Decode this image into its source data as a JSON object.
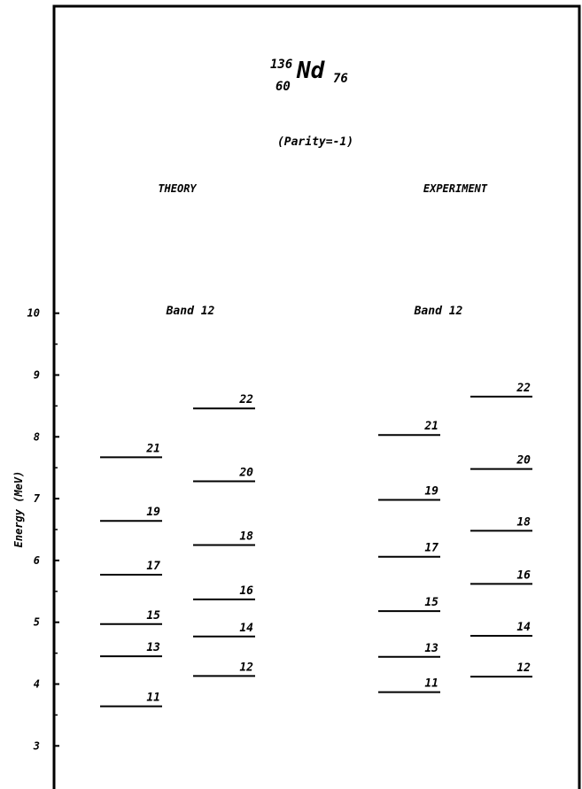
{
  "title": {
    "mass_number": "136",
    "element": "Nd",
    "proton_number": "60",
    "neutron_number": "76"
  },
  "parity_label": "(Parity=-1)",
  "axis": {
    "label": "Energy (MeV)",
    "ylim": [
      2.4,
      10.9
    ],
    "major_ticks": [
      3,
      4,
      5,
      6,
      7,
      8,
      9,
      10
    ],
    "minor_ticks": [
      3.5,
      4.5,
      5.5,
      6.5,
      7.5,
      8.5,
      9.5
    ]
  },
  "panels": [
    {
      "header": "THEORY",
      "band_label": "Band 12",
      "levels": [
        {
          "spin": "11",
          "energy": 3.64
        },
        {
          "spin": "13",
          "energy": 4.45
        },
        {
          "spin": "15",
          "energy": 4.97
        },
        {
          "spin": "17",
          "energy": 5.77
        },
        {
          "spin": "19",
          "energy": 6.64
        },
        {
          "spin": "21",
          "energy": 7.67
        },
        {
          "spin": "12",
          "energy": 4.13
        },
        {
          "spin": "14",
          "energy": 4.77
        },
        {
          "spin": "16",
          "energy": 5.37
        },
        {
          "spin": "18",
          "energy": 6.25
        },
        {
          "spin": "20",
          "energy": 7.28
        },
        {
          "spin": "22",
          "energy": 8.46
        }
      ]
    },
    {
      "header": "EXPERIMENT",
      "band_label": "Band 12",
      "levels": [
        {
          "spin": "11",
          "energy": 3.87
        },
        {
          "spin": "13",
          "energy": 4.44
        },
        {
          "spin": "15",
          "energy": 5.18
        },
        {
          "spin": "17",
          "energy": 6.06
        },
        {
          "spin": "19",
          "energy": 6.98
        },
        {
          "spin": "21",
          "energy": 8.03
        },
        {
          "spin": "12",
          "energy": 4.12
        },
        {
          "spin": "14",
          "energy": 4.78
        },
        {
          "spin": "16",
          "energy": 5.62
        },
        {
          "spin": "18",
          "energy": 6.48
        },
        {
          "spin": "20",
          "energy": 7.48
        },
        {
          "spin": "22",
          "energy": 8.65
        }
      ]
    }
  ]
}
